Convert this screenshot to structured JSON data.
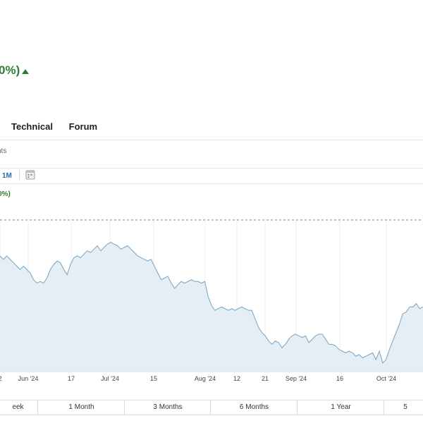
{
  "header": {
    "change_text": "0%)"
  },
  "tabs": [
    "Technical",
    "Forum"
  ],
  "sub_text": "nts",
  "toolbar": {
    "range_label": "1M",
    "calendar_icon": "calendar-icon"
  },
  "chart_change_text": "0%)",
  "colors": {
    "up": "#2e7d32",
    "line": "#7fa9c7",
    "fill": "#e6eef5",
    "accent": "#1f6fb2"
  },
  "chart_data": {
    "type": "area",
    "title": "",
    "xlabel": "",
    "ylabel": "",
    "grid": "vertical",
    "reference_line": "dashed",
    "x_ticks": [
      "2",
      "Jun '24",
      "17",
      "Jul '24",
      "15",
      "Aug '24",
      "12",
      "21",
      "Sep '24",
      "16",
      "Oct '24"
    ],
    "values": [
      148,
      146,
      148,
      146,
      144,
      142,
      140,
      142,
      140,
      138,
      134,
      132,
      133,
      132,
      135,
      140,
      143,
      145,
      144,
      140,
      137,
      143,
      147,
      148,
      147,
      149,
      151,
      150,
      152,
      154,
      151,
      153,
      155,
      156,
      155,
      154,
      152,
      153,
      154,
      152,
      150,
      148,
      147,
      146,
      145,
      146,
      142,
      138,
      134,
      135,
      136,
      132,
      129,
      131,
      133,
      132,
      133,
      134,
      133,
      133,
      132,
      133,
      124,
      119,
      116,
      117,
      118,
      117,
      116,
      117,
      116,
      117,
      118,
      117,
      116,
      116,
      111,
      106,
      103,
      101,
      98,
      96,
      98,
      97,
      94,
      96,
      99,
      101,
      102,
      101,
      100,
      101,
      97,
      99,
      101,
      102,
      102,
      99,
      96,
      96,
      95,
      93,
      92,
      91,
      92,
      91,
      89,
      90,
      88,
      89,
      90,
      91,
      87,
      92,
      85,
      87,
      93,
      98,
      103,
      108,
      114,
      115,
      118,
      118,
      120,
      117,
      118
    ]
  },
  "periods": [
    "eek",
    "1 Month",
    "3 Months",
    "6 Months",
    "1 Year",
    "5"
  ]
}
